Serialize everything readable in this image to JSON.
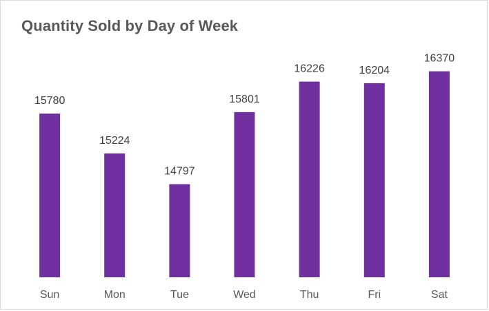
{
  "chart_data": {
    "type": "bar",
    "title": "Quantity Sold by Day of Week",
    "xlabel": "",
    "ylabel": "",
    "categories": [
      "Sun",
      "Mon",
      "Tue",
      "Wed",
      "Thu",
      "Fri",
      "Sat"
    ],
    "values": [
      15780,
      15224,
      14797,
      15801,
      16226,
      16204,
      16370
    ],
    "ylim": [
      13500,
      16500
    ],
    "grid": false,
    "legend": "none",
    "bar_color": "#7030a0",
    "data_labels": true
  }
}
